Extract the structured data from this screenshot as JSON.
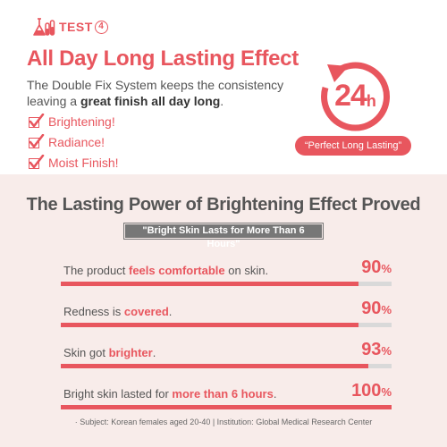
{
  "test_badge": {
    "label": "TEST",
    "number": "4"
  },
  "headline": "All Day Long Lasting Effect",
  "description": {
    "line1": "The Double Fix System keeps the consistency",
    "line2_pre": "leaving a ",
    "line2_bold": "great finish all day long",
    "line2_post": "."
  },
  "benefits": [
    "Brightening!",
    "Radiance!",
    "Moist Finish!"
  ],
  "clock": {
    "number": "24",
    "unit": "h",
    "caption": "“Perfect Long Lasting”"
  },
  "section": {
    "title": "The Lasting Power of Brightening Effect Proved",
    "subtitle": "\"Bright Skin Lasts for More Than 6 Hours\""
  },
  "results": [
    {
      "pre": "The product ",
      "bold": "feels comfortable",
      "post": " on skin.",
      "value": "90",
      "unit": "%",
      "fraction": 0.9
    },
    {
      "pre": "Redness is ",
      "bold": "covered",
      "post": ".",
      "value": "90",
      "unit": "%",
      "fraction": 0.9
    },
    {
      "pre": "Skin got ",
      "bold": "brighter",
      "post": ".",
      "value": "93",
      "unit": "%",
      "fraction": 0.93
    },
    {
      "pre": "Bright skin lasted for ",
      "bold": "more than 6 hours",
      "post": ".",
      "value": "100",
      "unit": "%",
      "fraction": 1.0
    }
  ],
  "footnote": "·  Subject: Korean females aged 20-40  |  Institution: Global Medical Research Center",
  "colors": {
    "accent": "#e8565e",
    "text": "#555555",
    "panel": "#f8ecea",
    "track": "#d9d9d9"
  }
}
